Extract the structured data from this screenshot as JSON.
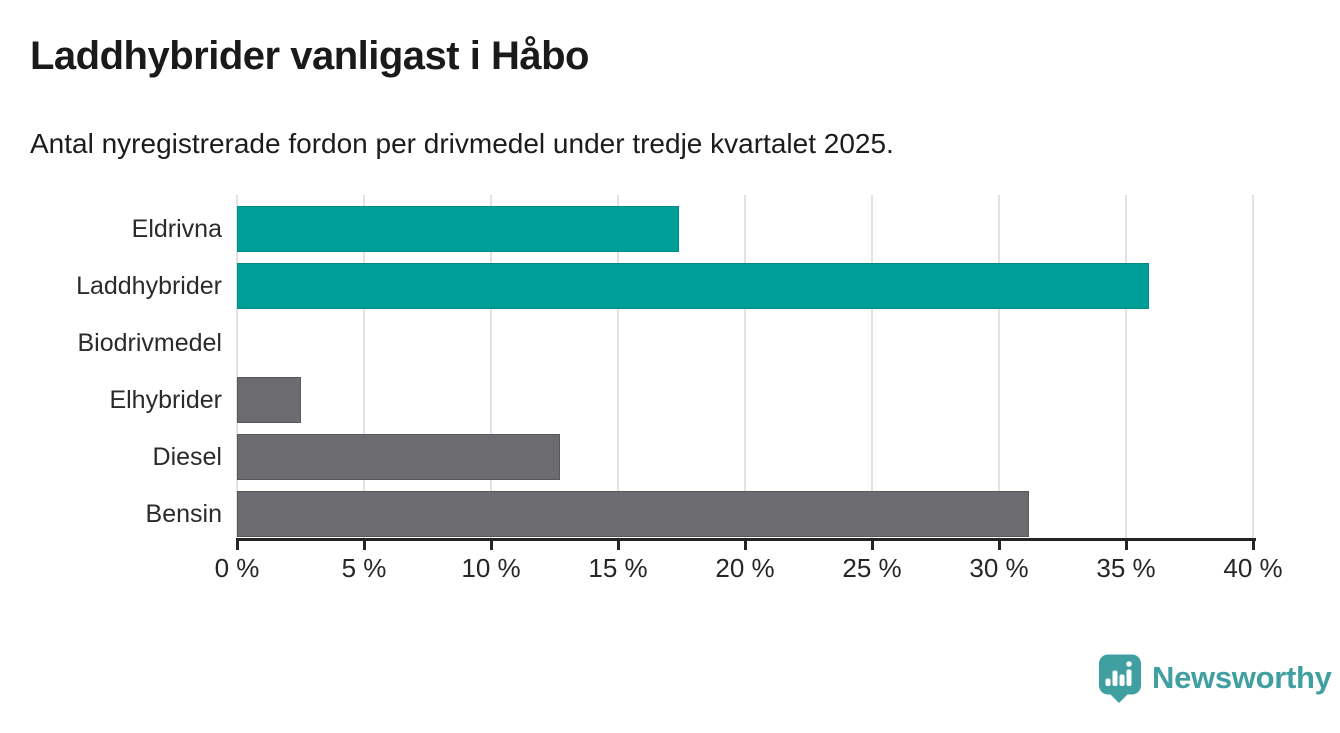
{
  "header": {
    "title": "Laddhybrider vanligast i Håbo",
    "subtitle": "Antal nyregistrerade fordon per drivmedel under tredje kvartalet 2025."
  },
  "colors": {
    "highlight_teal": "#009e98",
    "highlight_teal_border": "#008c87",
    "neutral_gray": "#6b6b70",
    "neutral_gray_border": "#57575c",
    "gridline": "#e2e2e2",
    "axis": "#242424",
    "text": "#1c1c1c",
    "brand_teal": "#3f9fa1"
  },
  "chart_data": {
    "type": "bar",
    "orientation": "horizontal",
    "title": "Laddhybrider vanligast i Håbo",
    "subtitle": "Antal nyregistrerade fordon per drivmedel under tredje kvartalet 2025.",
    "categories": [
      "Eldrivna",
      "Laddhybrider",
      "Biodrivmedel",
      "Elhybrider",
      "Diesel",
      "Bensin"
    ],
    "values": [
      17.4,
      35.9,
      0,
      2.5,
      12.7,
      31.2
    ],
    "unit": "%",
    "bar_fill": [
      "#009e98",
      "#009e98",
      "#009e98",
      "#6b6b70",
      "#6b6b70",
      "#6b6b70"
    ],
    "bar_border": [
      "#008c87",
      "#008c87",
      "#008c87",
      "#57575c",
      "#57575c",
      "#57575c"
    ],
    "xlim": [
      0,
      40
    ],
    "tick_values": [
      0,
      5,
      10,
      15,
      20,
      25,
      30,
      35,
      40
    ],
    "tick_labels": [
      "0 %",
      "5 %",
      "10 %",
      "15 %",
      "20 %",
      "25 %",
      "30 %",
      "35 %",
      "40 %"
    ],
    "grid": true,
    "legend": false
  },
  "footer": {
    "brand": "Newsworthy",
    "logo_icon": "newsworthy-badge-icon"
  }
}
